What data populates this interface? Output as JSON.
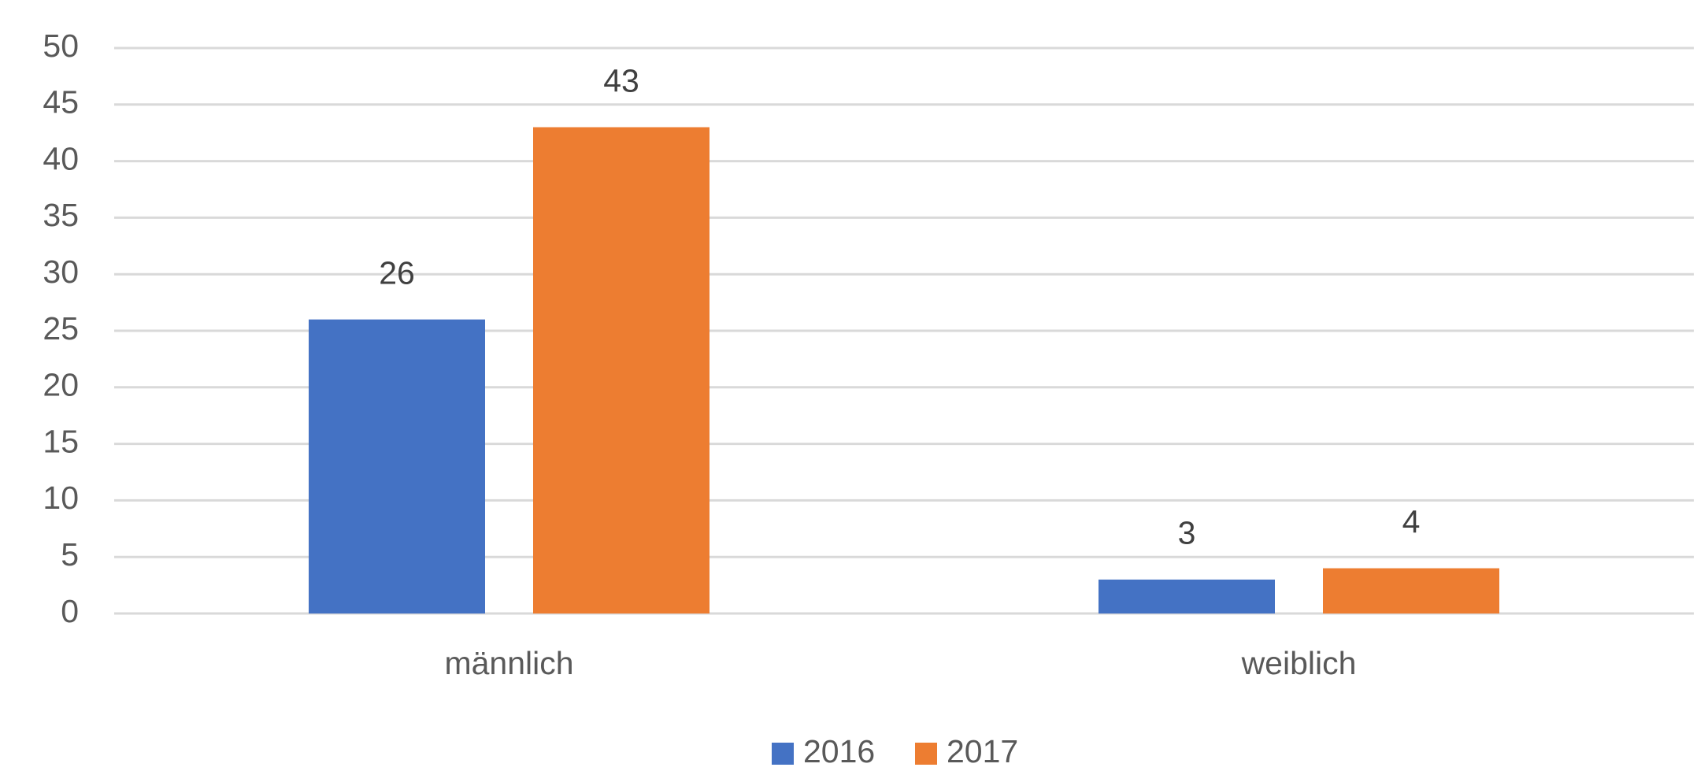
{
  "chart_data": {
    "type": "bar",
    "categories": [
      "männlich",
      "weiblich"
    ],
    "series": [
      {
        "name": "2016",
        "color": "#4472c4",
        "values": [
          26,
          3
        ]
      },
      {
        "name": "2017",
        "color": "#ed7d31",
        "values": [
          43,
          4
        ]
      }
    ],
    "ylim": [
      0,
      50
    ],
    "yticks": [
      0,
      5,
      10,
      15,
      20,
      25,
      30,
      35,
      40,
      45,
      50
    ],
    "grid": true,
    "legend": "bottom"
  }
}
